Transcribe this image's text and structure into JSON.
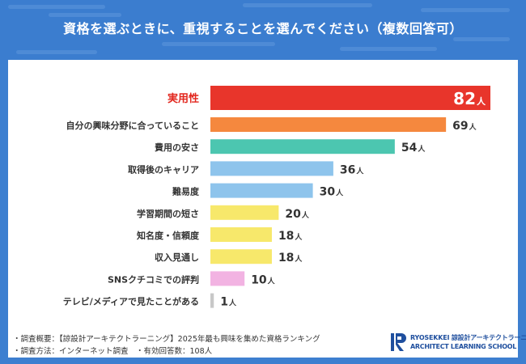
{
  "title": "資格を選ぶときに、重視することを選んでください（複数回答可）",
  "chart_data": {
    "type": "bar",
    "orientation": "horizontal",
    "title": "資格を選ぶときに、重視することを選んでください（複数回答可）",
    "unit": "人",
    "categories": [
      "実用性",
      "自分の興味分野に合っていること",
      "費用の安さ",
      "取得後のキャリア",
      "難易度",
      "学習期間の短さ",
      "知名度・信頼度",
      "収入見通し",
      "SNSクチコミでの評判",
      "テレビ/メディアで見たことがある"
    ],
    "values": [
      82,
      69,
      54,
      36,
      30,
      20,
      18,
      18,
      10,
      1
    ],
    "xlim": [
      0,
      82
    ],
    "highlight_index": 0,
    "colors": [
      "#e8352b",
      "#f5883e",
      "#4cc6b0",
      "#8ec4ec",
      "#8ec4ec",
      "#f7e86b",
      "#f7e86b",
      "#f7e86b",
      "#f2b3e2",
      "#c8c8c8"
    ]
  },
  "footer": {
    "line1": "・調査概要：【諒設計アーキテクトラーニング】2025年最も興味を集めた資格ランキング",
    "line2": "・調査方法：インターネット調査　・有効回答数：108人"
  },
  "logo": {
    "top": "RYOSEKKEI 諒設計アーキテクトラーニング",
    "bottom": "ARCHITECT LEARNING SCHOOL",
    "brand_color": "#1f4f9e"
  }
}
